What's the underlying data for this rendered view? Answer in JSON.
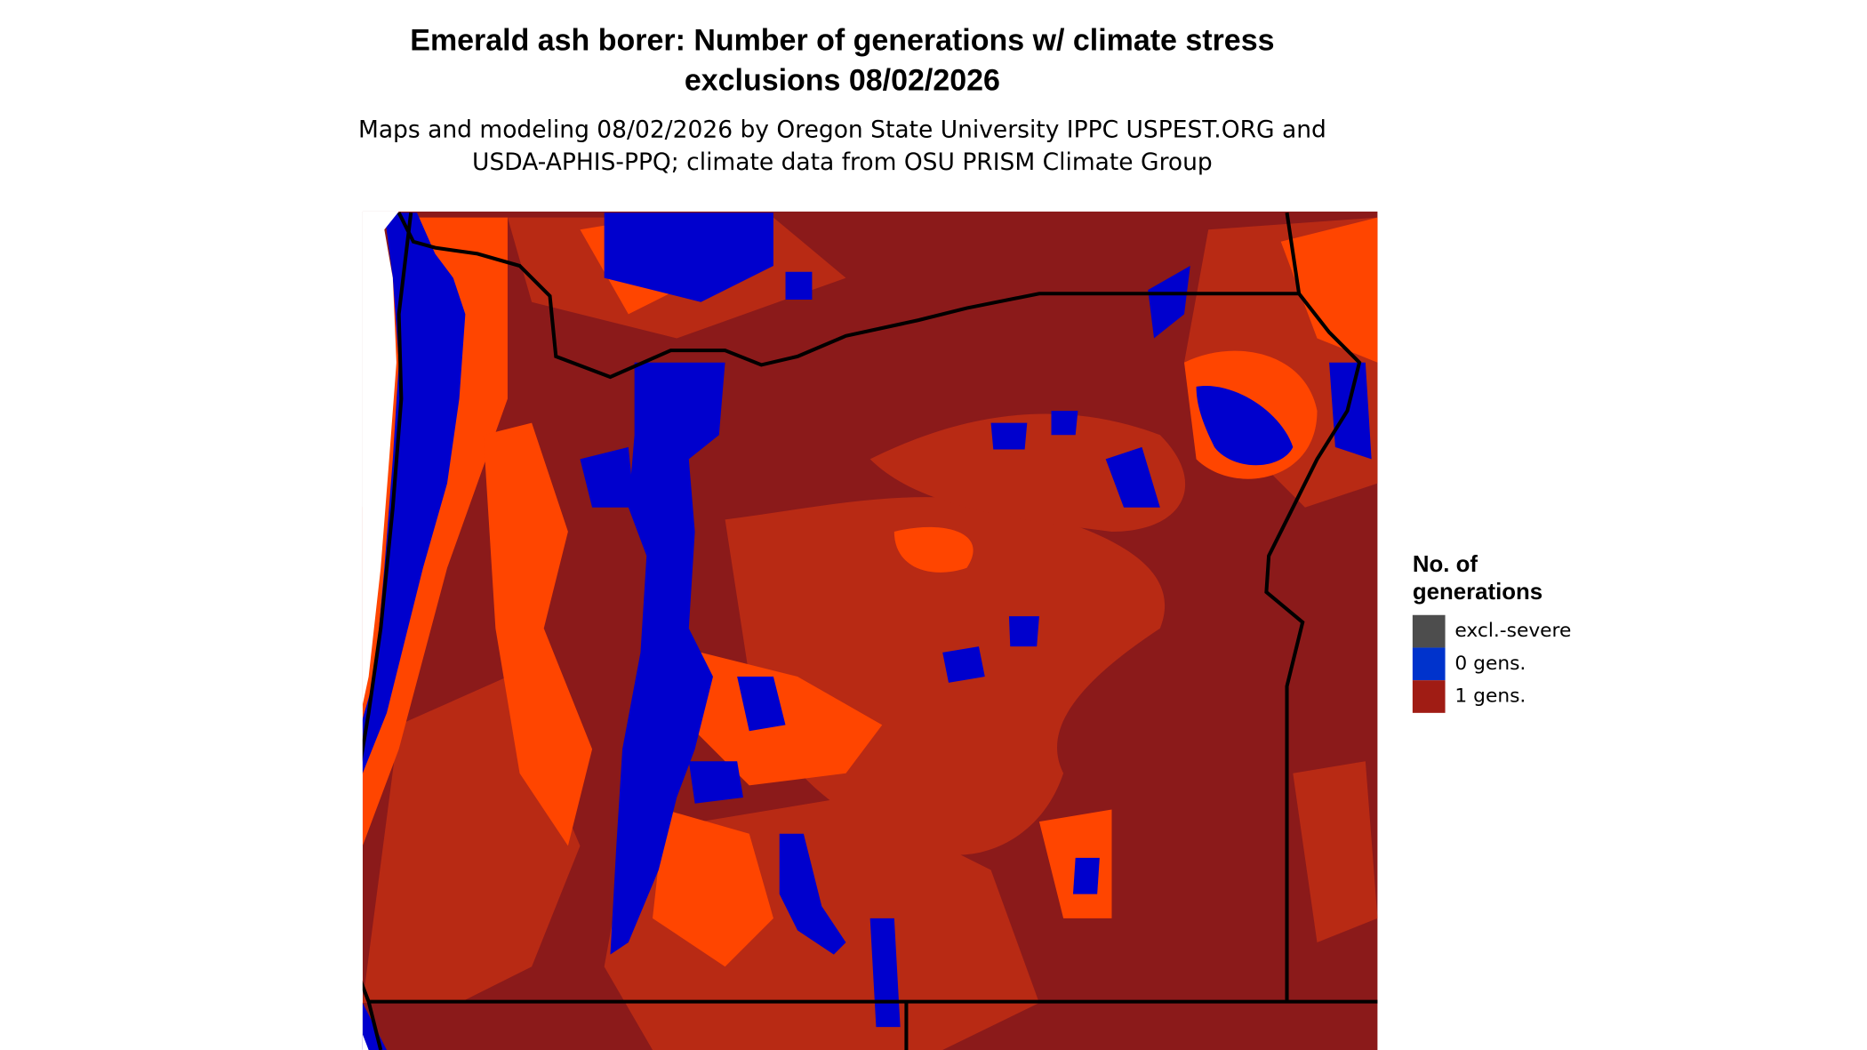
{
  "header": {
    "title_lines": [
      "Emerald ash borer: Number of generations w/ climate stress",
      "exclusions 08/02/2026"
    ],
    "subtitle_lines": [
      "Maps and modeling 08/02/2026 by Oregon State University IPPC USPEST.ORG and",
      "USDA-APHIS-PPQ; climate data from OSU PRISM Climate Group"
    ]
  },
  "legend": {
    "title_lines": [
      "No. of",
      "generations"
    ],
    "items": [
      {
        "label": "excl.-severe",
        "color": "#4d4d4d"
      },
      {
        "label": "0 gens.",
        "color": "#0033cc"
      },
      {
        "label": "1 gens.",
        "color": "#a01c14"
      }
    ]
  }
}
